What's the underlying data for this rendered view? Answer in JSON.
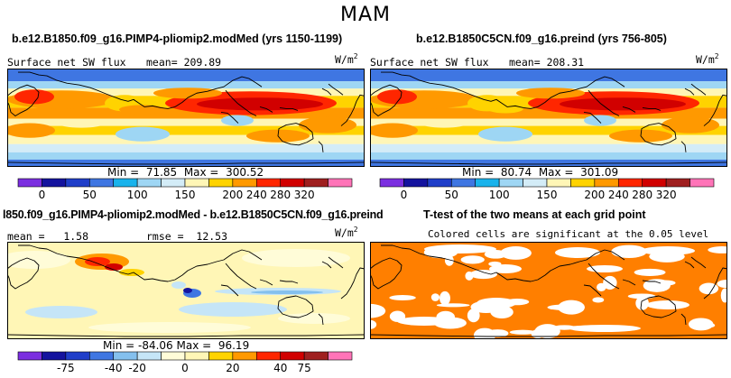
{
  "figure_title": "MAM",
  "panels": [
    {
      "id": "tl",
      "title": "b.e12.B1850.f09_g16.PIMP4-pliomip2.modMed (yrs 1150-1199)",
      "variable": "Surface net SW flux",
      "mean_label": "mean=",
      "mean_value": "209.89",
      "units": "W/m",
      "units_sup": "2",
      "min_label": "Min =",
      "min_value": "71.85",
      "max_label": "Max =",
      "max_value": "300.52"
    },
    {
      "id": "tr",
      "title": "b.e12.B1850C5CN.f09_g16.preind (yrs 756-805)",
      "variable": "Surface net SW flux",
      "mean_label": "mean=",
      "mean_value": "208.31",
      "units": "W/m",
      "units_sup": "2",
      "min_label": "Min =",
      "min_value": "80.74",
      "max_label": "Max =",
      "max_value": "301.09"
    },
    {
      "id": "bl",
      "title": "l850.f09_g16.PIMP4-pliomip2.modMed - b.e12.B1850C5CN.f09_g16.preind",
      "mean_label": "mean =",
      "mean_value": "1.58",
      "rmse_label": "rmse =",
      "rmse_value": "12.53",
      "units": "W/m",
      "units_sup": "2",
      "min_label": "Min =",
      "min_value": "-84.06",
      "max_label": "Max =",
      "max_value": "96.19"
    },
    {
      "id": "br",
      "title": "T-test of the two means at each grid point",
      "subtitle": "Colored cells are significant at the 0.05 level"
    }
  ],
  "colorbars": {
    "absolute": {
      "colors": [
        "#7b2fe0",
        "#14139e",
        "#1f3ec9",
        "#3f76e2",
        "#19b3ec",
        "#9ed6f4",
        "#d3ecf7",
        "#fff6b6",
        "#ffd300",
        "#ff9900",
        "#ff2600",
        "#d10000",
        "#9f1f1f",
        "#ff74b8"
      ],
      "labels": [
        "0",
        "50",
        "100",
        "150",
        "200",
        "240",
        "280",
        "320"
      ],
      "label_boundaries": [
        1,
        3,
        5,
        7,
        9,
        10,
        11,
        12
      ]
    },
    "difference": {
      "colors": [
        "#7b2fe0",
        "#14139e",
        "#1f3ec9",
        "#3f76e2",
        "#84c0ee",
        "#c5e5f7",
        "#fffcd8",
        "#fff6b6",
        "#ffd300",
        "#ff9900",
        "#ff2600",
        "#d10000",
        "#9f1f1f",
        "#ff74b8"
      ],
      "labels": [
        "-75",
        "-40",
        "-20",
        "0",
        "20",
        "40",
        "75"
      ],
      "label_boundaries": [
        2,
        4,
        5,
        7,
        9,
        11,
        12
      ]
    }
  },
  "chart_data": [
    {
      "type": "heatmap",
      "title": "b.e12.B1850.f09_g16.PIMP4-pliomip2.modMed (yrs 1150-1199)",
      "variable": "Surface net SW flux",
      "units": "W/m2",
      "mean": 209.89,
      "min": 71.85,
      "max": 300.52,
      "levels": [
        0,
        50,
        100,
        150,
        200,
        240,
        280,
        320
      ]
    },
    {
      "type": "heatmap",
      "title": "b.e12.B1850C5CN.f09_g16.preind (yrs 756-805)",
      "variable": "Surface net SW flux",
      "units": "W/m2",
      "mean": 208.31,
      "min": 80.74,
      "max": 301.09,
      "levels": [
        0,
        50,
        100,
        150,
        200,
        240,
        280,
        320
      ]
    },
    {
      "type": "heatmap",
      "title": "l850.f09_g16.PIMP4-pliomip2.modMed - b.e12.B1850C5CN.f09_g16.preind",
      "units": "W/m2",
      "mean": 1.58,
      "rmse": 12.53,
      "min": -84.06,
      "max": 96.19,
      "levels": [
        -75,
        -40,
        -20,
        0,
        20,
        40,
        75
      ]
    },
    {
      "type": "heatmap",
      "title": "T-test of the two means at each grid point",
      "subtitle": "Colored cells are significant at the 0.05 level",
      "significance_level": 0.05,
      "color": "#ff7f00"
    }
  ]
}
